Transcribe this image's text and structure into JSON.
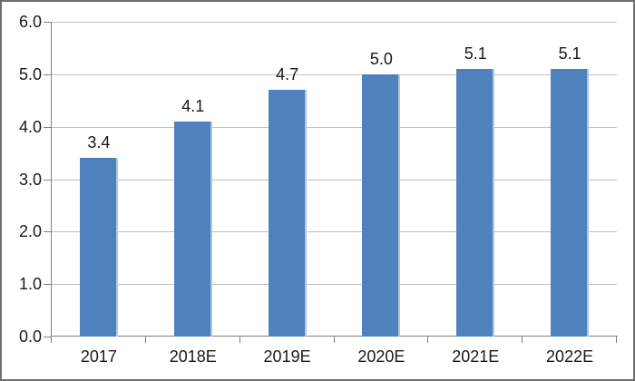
{
  "chart_data": {
    "type": "bar",
    "title": "",
    "xlabel": "",
    "ylabel": "",
    "categories": [
      "2017",
      "2018E",
      "2019E",
      "2020E",
      "2021E",
      "2022E"
    ],
    "values": [
      3.4,
      4.1,
      4.7,
      5.0,
      5.1,
      5.1
    ],
    "value_labels": [
      "3.4",
      "4.1",
      "4.7",
      "5.0",
      "5.1",
      "5.1"
    ],
    "ylim": [
      0,
      6
    ],
    "ytick_interval": 1.0,
    "ytick_labels": [
      "0.0",
      "1.0",
      "2.0",
      "3.0",
      "4.0",
      "5.0",
      "6.0"
    ],
    "grid": true,
    "legend_position": "none",
    "colors": {
      "bar_fill": "#4F81BD",
      "bar_edge_highlight": "#AFC6E2",
      "gridline": "#C0C0C0",
      "axis": "#808080",
      "text": "#1A1A1A",
      "background": "#FFFFFF",
      "frame_border": "#6E6E6E"
    }
  }
}
